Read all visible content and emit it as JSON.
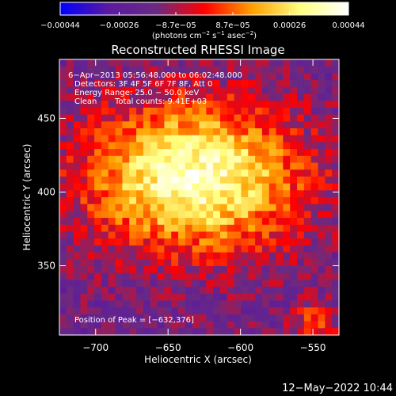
{
  "chart_data": {
    "type": "heatmap",
    "title": "Reconstructed RHESSI Image",
    "xlabel": "Heliocentric X (arcsec)",
    "ylabel": "Heliocentric Y (arcsec)",
    "xlim": [
      -725,
      -532
    ],
    "ylim": [
      303,
      490
    ],
    "x_ticks": [
      -700,
      -650,
      -600,
      -550
    ],
    "x_tick_labels": [
      "−700",
      "−650",
      "−600",
      "−550"
    ],
    "y_ticks": [
      350,
      400,
      450
    ],
    "y_tick_labels": [
      "350",
      "400",
      "450"
    ],
    "colorbar": {
      "range": [
        -0.00044,
        0.00044
      ],
      "tick_values": [
        -0.00044,
        -0.00026,
        -8.7e-05,
        8.7e-05,
        0.00026,
        0.00044
      ],
      "tick_labels": [
        "−0.00044",
        "−0.00026",
        "−8.7e−05",
        "8.7e−05",
        "0.00026",
        "0.00044"
      ],
      "unit_main": "(photons cm",
      "unit_sup1": "−2",
      "unit_mid": " s",
      "unit_sup2": "−1",
      "unit_end": " asec",
      "unit_sup3": "−2",
      "unit_close": ")",
      "stops": [
        "#0000ff",
        "#5a1aa0",
        "#6a2a82",
        "#ff0000",
        "#ffa000",
        "#ffff80",
        "#ffffff"
      ]
    },
    "annotations": {
      "time_range": "6−Apr−2013 05:56:48.000 to 06:02:48.000",
      "detectors": "Detectors: 3F 4F 5F 6F 7F 8F, Att 0",
      "energy": "Energy Range: 25.0 − 50.0 keV",
      "method": "Clean",
      "total_counts": "Total counts: 9.41E+03",
      "peak": "Position of Peak = [−632,376]"
    },
    "peak_position": [
      -632,
      376
    ],
    "grid": false
  },
  "footer": {
    "timestamp": "12−May−2022 10:44"
  }
}
